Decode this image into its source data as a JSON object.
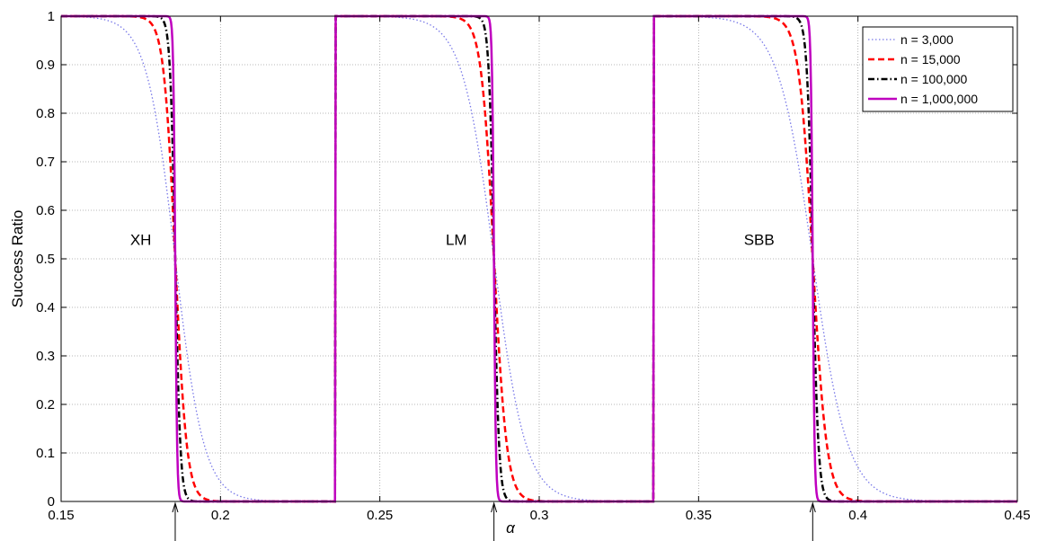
{
  "chart_data": {
    "type": "line",
    "title": "",
    "xlabel": "α",
    "ylabel": "Success Ratio",
    "xlim": [
      0.15,
      0.45
    ],
    "ylim": [
      0,
      1
    ],
    "xticks": [
      0.15,
      0.2,
      0.25,
      0.3,
      0.35,
      0.4,
      0.45
    ],
    "xtick_labels": [
      "0.15",
      "0.2",
      "0.25",
      "0.3",
      "0.35",
      "0.4",
      "0.45"
    ],
    "yticks": [
      0,
      0.1,
      0.2,
      0.3,
      0.4,
      0.5,
      0.6,
      0.7,
      0.8,
      0.9,
      1
    ],
    "ytick_labels": [
      "0",
      "0.1",
      "0.2",
      "0.3",
      "0.4",
      "0.5",
      "0.6",
      "0.7",
      "0.8",
      "0.9",
      "1"
    ],
    "grid": true,
    "legend_position": "top-right",
    "thresholds": [
      {
        "label": "XH",
        "x": 0.1858,
        "label_x": 0.175,
        "label_y": 0.54
      },
      {
        "label": "LM",
        "x": 0.2858,
        "label_x": 0.274,
        "label_y": 0.54
      },
      {
        "label": "SBB",
        "x": 0.3858,
        "label_x": 0.369,
        "label_y": 0.54
      }
    ],
    "series": [
      {
        "name": "n = 3,000",
        "color": "#7878e8",
        "style": "dotted",
        "widths": [
          0.0045,
          0.005,
          0.0055
        ]
      },
      {
        "name": "n = 15,000",
        "color": "#ff0000",
        "style": "dashed",
        "widths": [
          0.0018,
          0.002,
          0.0022
        ]
      },
      {
        "name": "n = 100,000",
        "color": "#000000",
        "style": "dashdot",
        "widths": [
          0.0008,
          0.0008,
          0.0009
        ]
      },
      {
        "name": "n = 1,000,000",
        "color": "#bf00bf",
        "style": "solid",
        "widths": [
          0.0003,
          0.0003,
          0.0003
        ]
      }
    ]
  }
}
